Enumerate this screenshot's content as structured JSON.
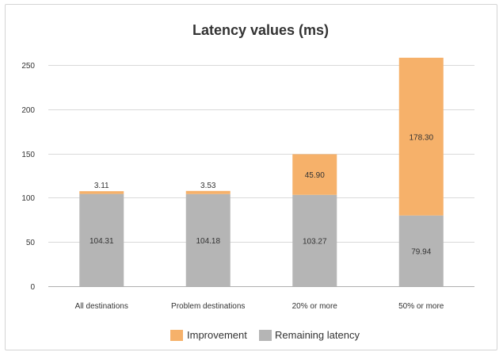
{
  "chart_data": {
    "type": "bar",
    "stacked": true,
    "title": "Latency values (ms)",
    "xlabel": "",
    "ylabel": "",
    "categories": [
      "All destinations",
      "Problem destinations",
      "20% or more",
      "50% or more"
    ],
    "series": [
      {
        "name": "Remaining latency",
        "color": "#b5b5b5",
        "values": [
          104.31,
          104.18,
          103.27,
          79.94
        ],
        "labels": [
          "104.31",
          "104.18",
          "103.27",
          "79.94"
        ]
      },
      {
        "name": "Improvement",
        "color": "#f6b16a",
        "values": [
          3.11,
          3.53,
          45.9,
          178.3
        ],
        "labels": [
          "3.11",
          "3.53",
          "45.90",
          "178.30"
        ]
      }
    ],
    "ylim": [
      0,
      250
    ],
    "yticks": [
      0,
      50,
      100,
      150,
      200,
      250
    ],
    "ytick_labels": [
      "0",
      "50",
      "100",
      "150",
      "200",
      "250"
    ],
    "grid": true,
    "legend_position": "bottom",
    "legend_order": [
      "Improvement",
      "Remaining latency"
    ],
    "colors": {
      "gridline": "#d9d9d9",
      "axis": "#b0b0b0",
      "text": "#333333"
    }
  }
}
